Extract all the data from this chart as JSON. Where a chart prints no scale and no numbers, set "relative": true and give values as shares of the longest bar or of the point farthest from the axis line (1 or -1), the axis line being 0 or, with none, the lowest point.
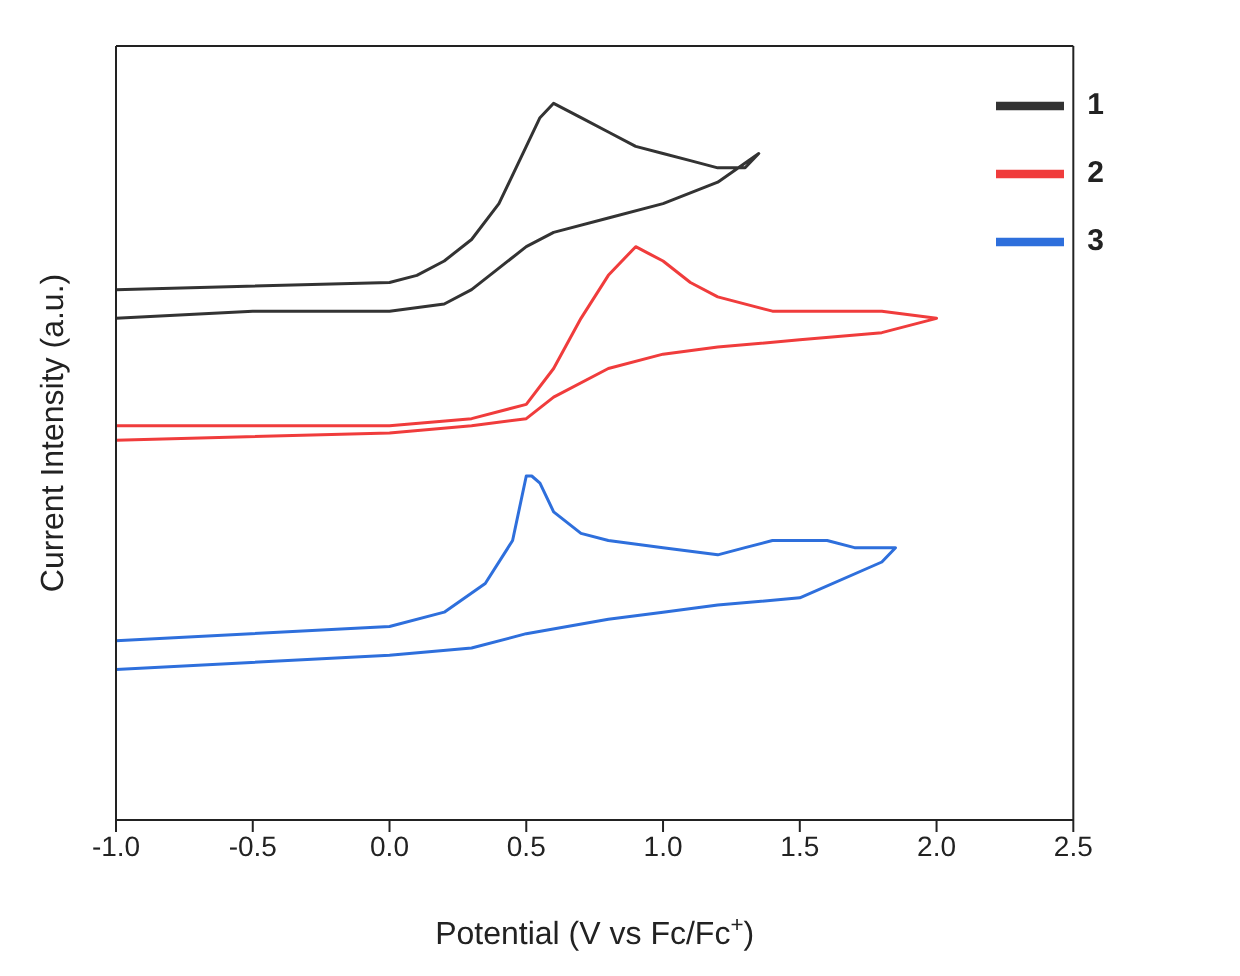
{
  "chart_data": {
    "type": "line",
    "relative": true,
    "xlabel": "Potential (V vs Fc/Fc$^{+}$)",
    "ylabel": "Current Intensity (a.u.)",
    "xlim": [
      -1,
      2.5
    ],
    "xticks": [
      {
        "value": -1,
        "label": "-1.0"
      },
      -0.5,
      {
        "value": 0,
        "label": "0.0"
      },
      0.5,
      {
        "value": 1,
        "label": "1.0"
      },
      1.5,
      {
        "value": 2,
        "label": "2.0"
      },
      2.5
    ],
    "legend": "top right",
    "marker": "none",
    "line_style": "solid",
    "series": [
      {
        "name": "1",
        "color": "#333333",
        "x": [
          -1,
          0,
          0.1,
          0.2,
          0.3,
          0.4,
          0.5,
          0.55,
          0.6,
          0.7,
          0.8,
          0.9,
          1.0,
          1.1,
          1.2,
          1.3,
          1.35,
          1.2,
          1.0,
          0.8,
          0.6,
          0.5,
          0.4,
          0.3,
          0.2,
          0,
          -0.5,
          -1
        ],
        "values": [
          0.74,
          0.75,
          0.76,
          0.78,
          0.81,
          0.86,
          0.94,
          0.98,
          1.0,
          0.98,
          0.96,
          0.94,
          0.93,
          0.92,
          0.91,
          0.91,
          0.93,
          0.89,
          0.86,
          0.84,
          0.82,
          0.8,
          0.77,
          0.74,
          0.72,
          0.71,
          0.71,
          0.7
        ]
      },
      {
        "name": "2",
        "color": "#f03c3c",
        "x": [
          -1,
          0,
          0.3,
          0.5,
          0.6,
          0.7,
          0.8,
          0.9,
          0.95,
          1.0,
          1.1,
          1.2,
          1.4,
          1.6,
          1.7,
          1.8,
          2.0,
          1.8,
          1.5,
          1.2,
          1.0,
          0.8,
          0.6,
          0.5,
          0.3,
          0,
          -1
        ],
        "values": [
          0.55,
          0.55,
          0.56,
          0.58,
          0.63,
          0.7,
          0.76,
          0.8,
          0.79,
          0.78,
          0.75,
          0.73,
          0.71,
          0.71,
          0.71,
          0.71,
          0.7,
          0.68,
          0.67,
          0.66,
          0.65,
          0.63,
          0.59,
          0.56,
          0.55,
          0.54,
          0.53
        ]
      },
      {
        "name": "3",
        "color": "#2e6fdc",
        "x": [
          -1,
          0,
          0.2,
          0.35,
          0.45,
          0.5,
          0.52,
          0.55,
          0.6,
          0.7,
          0.8,
          1.0,
          1.2,
          1.3,
          1.4,
          1.5,
          1.6,
          1.7,
          1.85,
          1.8,
          1.5,
          1.2,
          1.0,
          0.8,
          0.5,
          0.3,
          0,
          -1
        ],
        "values": [
          0.25,
          0.27,
          0.29,
          0.33,
          0.39,
          0.48,
          0.48,
          0.47,
          0.43,
          0.4,
          0.39,
          0.38,
          0.37,
          0.38,
          0.39,
          0.39,
          0.39,
          0.38,
          0.38,
          0.36,
          0.31,
          0.3,
          0.29,
          0.28,
          0.26,
          0.24,
          0.23,
          0.21
        ]
      }
    ]
  }
}
